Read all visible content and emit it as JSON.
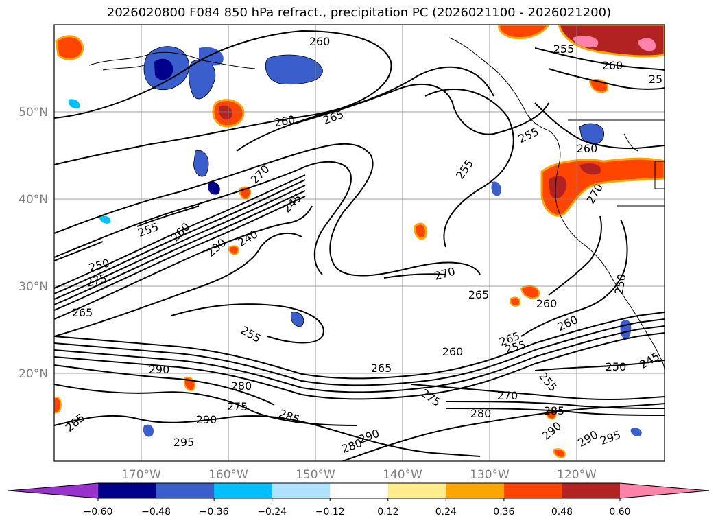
{
  "title": "2026020800 F084 850 hPa refract., precipitation PC (2026021100 - 2026021200)",
  "lat_labels": [
    "50°N",
    "40°N",
    "30°N",
    "20°N"
  ],
  "lon_labels": [
    "170°W",
    "160°W",
    "150°W",
    "140°W",
    "130°W",
    "120°W"
  ],
  "contour_labels": [
    {
      "text": "260"
    },
    {
      "text": "265"
    },
    {
      "text": "260"
    },
    {
      "text": "255"
    },
    {
      "text": "260"
    },
    {
      "text": "25"
    },
    {
      "text": "255"
    },
    {
      "text": "260"
    },
    {
      "text": "255"
    },
    {
      "text": "270"
    },
    {
      "text": "245"
    },
    {
      "text": "255"
    },
    {
      "text": "260"
    },
    {
      "text": "240"
    },
    {
      "text": "230"
    },
    {
      "text": "250"
    },
    {
      "text": "275"
    },
    {
      "text": "265"
    },
    {
      "text": "270"
    },
    {
      "text": "265"
    },
    {
      "text": "260"
    },
    {
      "text": "260"
    },
    {
      "text": "265"
    },
    {
      "text": "255"
    },
    {
      "text": "255"
    },
    {
      "text": "260"
    },
    {
      "text": "265"
    },
    {
      "text": "290"
    },
    {
      "text": "280"
    },
    {
      "text": "275"
    },
    {
      "text": "285"
    },
    {
      "text": "290"
    },
    {
      "text": "285"
    },
    {
      "text": "295"
    },
    {
      "text": "290"
    },
    {
      "text": "280"
    },
    {
      "text": "275"
    },
    {
      "text": "270"
    },
    {
      "text": "280"
    },
    {
      "text": "285"
    },
    {
      "text": "290"
    },
    {
      "text": "290"
    },
    {
      "text": "295"
    },
    {
      "text": "250"
    },
    {
      "text": "245"
    },
    {
      "text": "255"
    },
    {
      "text": "270"
    },
    {
      "text": "250"
    }
  ],
  "colorbar": {
    "ticks": [
      "−0.60",
      "−0.48",
      "−0.36",
      "−0.24",
      "−0.12",
      "0.12",
      "0.24",
      "0.36",
      "0.48",
      "0.60"
    ],
    "colors": [
      "#9932cc",
      "#00008b",
      "#3a5fcd",
      "#00bfff",
      "#b0e2ff",
      "#ffffff",
      "#ffec8b",
      "#ffa500",
      "#ff4500",
      "#b22222",
      "#ff82ab"
    ]
  }
}
